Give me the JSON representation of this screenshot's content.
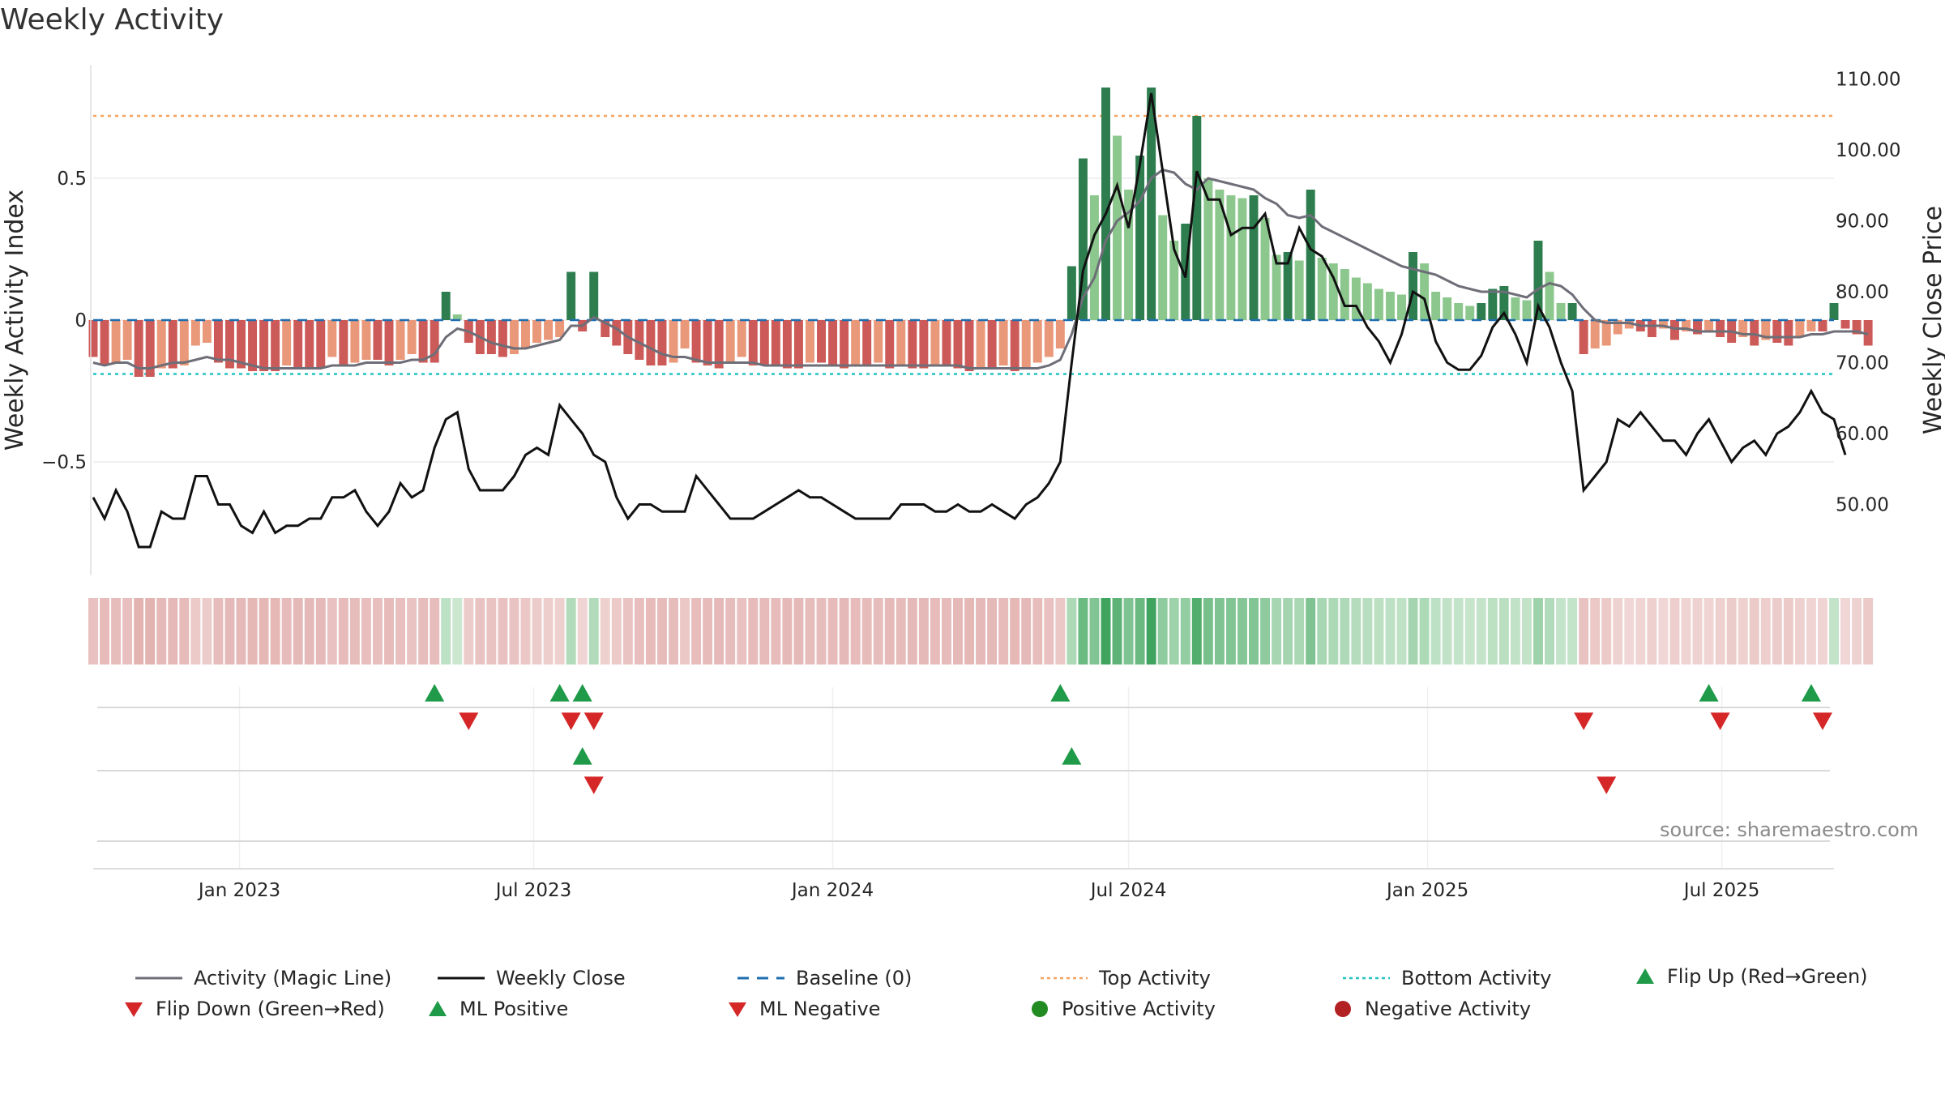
{
  "title": "Weekly Activity",
  "source": "source: sharemaestro.com",
  "colors": {
    "green_dark": "#2e7d4f",
    "green_light": "#8cc78e",
    "red_dark": "#cc5a58",
    "red_light": "#e9987a",
    "magic_line": "#6e6e78",
    "close_line": "#111111",
    "baseline": "#1f6fb0",
    "top": "#f4a460",
    "bottom": "#22c4c4",
    "flip_up": "#1f9a48",
    "flip_down": "#d62728",
    "pos_dot": "#228b22",
    "neg_dot": "#b22222"
  },
  "chart_data": {
    "type": "bar",
    "title": "Weekly Activity",
    "ylabel": "Weekly Activity Index",
    "y2label": "Weekly Close Price",
    "ylim": [
      -0.9,
      0.9
    ],
    "y2lim": [
      40,
      112
    ],
    "yticks": [
      "0.5",
      "0",
      "−0.5"
    ],
    "yticks_values": [
      0.5,
      0,
      -0.5
    ],
    "y2ticks": [
      "110.00",
      "100.00",
      "90.00",
      "80.00",
      "70.00",
      "60.00",
      "50.00"
    ],
    "y2ticks_values": [
      110,
      100,
      90,
      80,
      70,
      60,
      50
    ],
    "xlim": [
      "2022-10-03",
      "2025-09-08"
    ],
    "xticks": [
      "Jan 2023",
      "Jul 2023",
      "Jan 2024",
      "Jul 2024",
      "Jan 2025",
      "Jul 2025"
    ],
    "xticks_dates": [
      "2023-01-01",
      "2023-07-01",
      "2024-01-01",
      "2024-07-01",
      "2025-01-01",
      "2025-07-01"
    ],
    "top_activity": 0.72,
    "bottom_activity": -0.19,
    "weeks_start": "2022-10-03",
    "activity": [
      -0.13,
      -0.16,
      -0.15,
      -0.14,
      -0.2,
      -0.2,
      -0.17,
      -0.17,
      -0.16,
      -0.09,
      -0.08,
      -0.15,
      -0.17,
      -0.17,
      -0.18,
      -0.18,
      -0.18,
      -0.16,
      -0.17,
      -0.17,
      -0.17,
      -0.13,
      -0.16,
      -0.15,
      -0.14,
      -0.14,
      -0.16,
      -0.14,
      -0.12,
      -0.15,
      -0.15,
      0.1,
      0.02,
      -0.08,
      -0.12,
      -0.12,
      -0.13,
      -0.12,
      -0.1,
      -0.08,
      -0.07,
      -0.06,
      0.17,
      -0.04,
      0.17,
      -0.06,
      -0.09,
      -0.12,
      -0.14,
      -0.16,
      -0.16,
      -0.15,
      -0.1,
      -0.15,
      -0.16,
      -0.17,
      -0.15,
      -0.13,
      -0.16,
      -0.16,
      -0.16,
      -0.17,
      -0.17,
      -0.15,
      -0.15,
      -0.16,
      -0.17,
      -0.16,
      -0.16,
      -0.15,
      -0.17,
      -0.16,
      -0.17,
      -0.17,
      -0.16,
      -0.16,
      -0.17,
      -0.18,
      -0.17,
      -0.17,
      -0.16,
      -0.18,
      -0.17,
      -0.15,
      -0.13,
      -0.1,
      0.19,
      0.57,
      0.44,
      0.82,
      0.65,
      0.46,
      0.58,
      0.82,
      0.37,
      0.28,
      0.34,
      0.72,
      0.5,
      0.46,
      0.44,
      0.43,
      0.44,
      0.36,
      0.23,
      0.24,
      0.21,
      0.46,
      0.22,
      0.2,
      0.18,
      0.15,
      0.13,
      0.11,
      0.1,
      0.09,
      0.24,
      0.2,
      0.1,
      0.08,
      0.06,
      0.05,
      0.06,
      0.11,
      0.12,
      0.08,
      0.07,
      0.28,
      0.17,
      0.06,
      0.06,
      -0.12,
      -0.1,
      -0.09,
      -0.05,
      -0.03,
      -0.04,
      -0.06,
      -0.03,
      -0.07,
      -0.04,
      -0.05,
      -0.04,
      -0.06,
      -0.08,
      -0.06,
      -0.09,
      -0.07,
      -0.08,
      -0.09,
      -0.06,
      -0.04,
      -0.04,
      0.06,
      -0.03,
      -0.05,
      -0.09
    ],
    "magic_line": [
      -0.15,
      -0.16,
      -0.15,
      -0.15,
      -0.17,
      -0.17,
      -0.16,
      -0.15,
      -0.15,
      -0.14,
      -0.13,
      -0.14,
      -0.14,
      -0.15,
      -0.16,
      -0.17,
      -0.17,
      -0.17,
      -0.17,
      -0.17,
      -0.17,
      -0.16,
      -0.16,
      -0.16,
      -0.15,
      -0.15,
      -0.15,
      -0.15,
      -0.14,
      -0.14,
      -0.12,
      -0.06,
      -0.03,
      -0.04,
      -0.06,
      -0.08,
      -0.09,
      -0.1,
      -0.1,
      -0.09,
      -0.08,
      -0.07,
      -0.02,
      -0.02,
      0.01,
      -0.01,
      -0.03,
      -0.06,
      -0.08,
      -0.1,
      -0.12,
      -0.13,
      -0.13,
      -0.14,
      -0.15,
      -0.15,
      -0.15,
      -0.15,
      -0.15,
      -0.16,
      -0.16,
      -0.16,
      -0.16,
      -0.16,
      -0.16,
      -0.16,
      -0.16,
      -0.16,
      -0.16,
      -0.16,
      -0.16,
      -0.16,
      -0.16,
      -0.16,
      -0.16,
      -0.16,
      -0.16,
      -0.17,
      -0.17,
      -0.17,
      -0.17,
      -0.17,
      -0.17,
      -0.17,
      -0.16,
      -0.14,
      -0.05,
      0.08,
      0.15,
      0.28,
      0.35,
      0.38,
      0.42,
      0.5,
      0.53,
      0.52,
      0.48,
      0.46,
      0.5,
      0.49,
      0.48,
      0.47,
      0.46,
      0.43,
      0.41,
      0.37,
      0.36,
      0.37,
      0.33,
      0.31,
      0.29,
      0.27,
      0.25,
      0.23,
      0.21,
      0.19,
      0.18,
      0.17,
      0.16,
      0.14,
      0.12,
      0.11,
      0.1,
      0.1,
      0.1,
      0.09,
      0.08,
      0.11,
      0.13,
      0.12,
      0.09,
      0.04,
      0.0,
      -0.01,
      -0.01,
      -0.01,
      -0.02,
      -0.02,
      -0.02,
      -0.03,
      -0.03,
      -0.04,
      -0.04,
      -0.04,
      -0.04,
      -0.05,
      -0.05,
      -0.06,
      -0.06,
      -0.06,
      -0.06,
      -0.05,
      -0.05,
      -0.04,
      -0.04,
      -0.04,
      -0.05
    ],
    "close": [
      51,
      48,
      52,
      49,
      44,
      44,
      49,
      48,
      48,
      54,
      54,
      50,
      50,
      47,
      46,
      49,
      46,
      47,
      47,
      48,
      48,
      51,
      51,
      52,
      49,
      47,
      49,
      53,
      51,
      52,
      58,
      62,
      63,
      55,
      52,
      52,
      52,
      54,
      57,
      58,
      57,
      64,
      62,
      60,
      57,
      56,
      51,
      48,
      50,
      50,
      49,
      49,
      49,
      54,
      52,
      50,
      48,
      48,
      48,
      49,
      50,
      51,
      52,
      51,
      51,
      50,
      49,
      48,
      48,
      48,
      48,
      50,
      50,
      50,
      49,
      49,
      50,
      49,
      49,
      50,
      49,
      48,
      50,
      51,
      53,
      56,
      70,
      83,
      88,
      91,
      95,
      89,
      98,
      108,
      97,
      86,
      82,
      97,
      93,
      93,
      88,
      89,
      89,
      91,
      84,
      84,
      89,
      86,
      85,
      82,
      78,
      78,
      75,
      73,
      70,
      74,
      80,
      79,
      73,
      70,
      69,
      69,
      71,
      75,
      77,
      74,
      70,
      78,
      75,
      70,
      66,
      52,
      54,
      56,
      62,
      61,
      63,
      61,
      59,
      59,
      57,
      60,
      62,
      59,
      56,
      58,
      59,
      57,
      60,
      61,
      63,
      66,
      63,
      62,
      57
    ],
    "heat_strip": "per-week intensity colouring mirrors activity",
    "flip_up_weeks": [
      30,
      41,
      43,
      85,
      142,
      151
    ],
    "flip_down_weeks": [
      33,
      42,
      44,
      131,
      143,
      152
    ],
    "ml_positive_weeks": [
      43,
      86
    ],
    "ml_negative_weeks": [
      44,
      133
    ]
  },
  "legend": [
    {
      "key": "magic",
      "label": "Activity (Magic Line)"
    },
    {
      "key": "close",
      "label": "Weekly Close"
    },
    {
      "key": "baseline",
      "label": "Baseline (0)"
    },
    {
      "key": "top",
      "label": "Top Activity"
    },
    {
      "key": "bottom",
      "label": "Bottom Activity"
    },
    {
      "key": "flipup",
      "label": "Flip Up (Red→Green)"
    },
    {
      "key": "flipdown",
      "label": "Flip Down (Green→Red)"
    },
    {
      "key": "mlpos",
      "label": "ML Positive"
    },
    {
      "key": "mlneg",
      "label": "ML Negative"
    },
    {
      "key": "posact",
      "label": "Positive Activity"
    },
    {
      "key": "negact",
      "label": "Negative Activity"
    }
  ]
}
